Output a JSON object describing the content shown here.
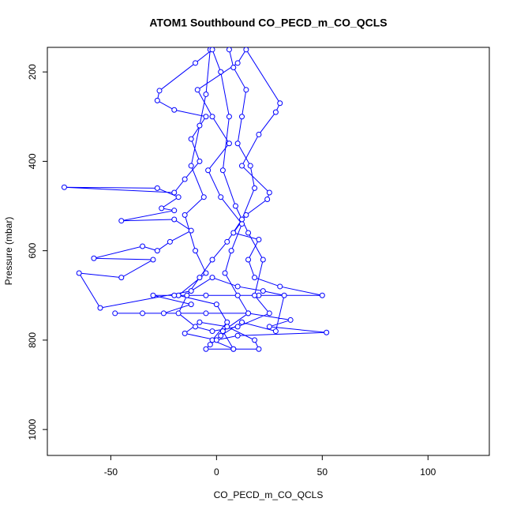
{
  "chart_data": {
    "type": "scatter",
    "title": "ATOM1 Southbound CO_PECD_m_CO_QCLS",
    "x_label": "CO_PECD_m_CO_QCLS",
    "y_label": "Pressure (mbar)",
    "color": "#0000ff",
    "xlim": [
      -80,
      129
    ],
    "ylim": [
      1058,
      145
    ],
    "xticks": [
      -50,
      0,
      50,
      100
    ],
    "yticks": [
      200,
      400,
      600,
      800,
      1000
    ],
    "x": [
      -3,
      -5,
      -8,
      -12,
      -6,
      -15,
      -10,
      -5,
      -18,
      0,
      5,
      -2,
      8,
      3,
      15,
      10,
      4,
      7,
      12,
      2,
      -4,
      6,
      -2,
      -9,
      10,
      14,
      30,
      28,
      20,
      12,
      25,
      24,
      14,
      8,
      20,
      15,
      18,
      30,
      50,
      20,
      -5,
      -20,
      -30,
      -12,
      -25,
      -48,
      -35,
      -5,
      15,
      35,
      25,
      52,
      10,
      0,
      -15,
      -8,
      5,
      18,
      20,
      8,
      -5,
      -3,
      2,
      12,
      28,
      32,
      22,
      10,
      -2,
      -12,
      -55,
      -65,
      -45,
      -30,
      -58,
      -35,
      -28,
      -22,
      -12,
      -20,
      -45,
      -20,
      -26,
      -18,
      -28,
      -72,
      -20,
      -15,
      -8,
      -12,
      -5,
      -20,
      -28,
      -27,
      -10,
      -2,
      2,
      6,
      3,
      9,
      15,
      22,
      18,
      25,
      10,
      -2,
      -10,
      -18,
      -14,
      -8,
      -2,
      5,
      12,
      18,
      16,
      10,
      12,
      14,
      8,
      6
    ],
    "values": [
      150,
      250,
      320,
      410,
      480,
      520,
      600,
      650,
      700,
      720,
      760,
      800,
      820,
      780,
      740,
      700,
      650,
      600,
      540,
      480,
      420,
      360,
      300,
      240,
      180,
      150,
      270,
      290,
      340,
      410,
      470,
      485,
      520,
      560,
      575,
      620,
      660,
      680,
      700,
      700,
      700,
      700,
      700,
      720,
      740,
      740,
      740,
      740,
      740,
      755,
      770,
      783,
      790,
      800,
      785,
      760,
      770,
      800,
      820,
      820,
      820,
      810,
      790,
      760,
      780,
      700,
      690,
      680,
      660,
      690,
      728,
      650,
      660,
      620,
      617,
      590,
      600,
      580,
      555,
      530,
      533,
      510,
      505,
      480,
      460,
      458,
      470,
      440,
      400,
      350,
      300,
      285,
      264,
      242,
      180,
      150,
      200,
      300,
      420,
      500,
      560,
      620,
      700,
      740,
      770,
      780,
      770,
      740,
      700,
      660,
      620,
      580,
      530,
      460,
      410,
      360,
      300,
      240,
      190,
      150
    ]
  }
}
